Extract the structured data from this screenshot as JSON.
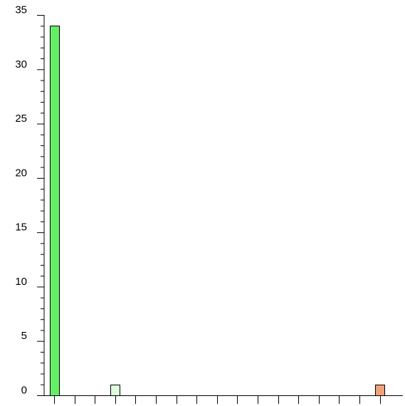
{
  "chart_data": {
    "type": "bar",
    "title": "",
    "xlabel": "",
    "ylabel": "",
    "ylim": [
      0,
      35
    ],
    "y_major_ticks": [
      0,
      5,
      10,
      15,
      20,
      25,
      30,
      35
    ],
    "y_tick_labels": [
      "0",
      "5",
      "10",
      "15",
      "20",
      "25",
      "30",
      "35"
    ],
    "y_minor_step": 1,
    "bin_count": 17,
    "x_tick_labels": [],
    "grid": false,
    "legend": "none",
    "bars": [
      {
        "bin": 0,
        "value": 34,
        "color": "#66ee66"
      },
      {
        "bin": 3,
        "value": 1,
        "color": "#ddffdd"
      },
      {
        "bin": 16,
        "value": 1,
        "color": "#f4a07a"
      }
    ]
  }
}
